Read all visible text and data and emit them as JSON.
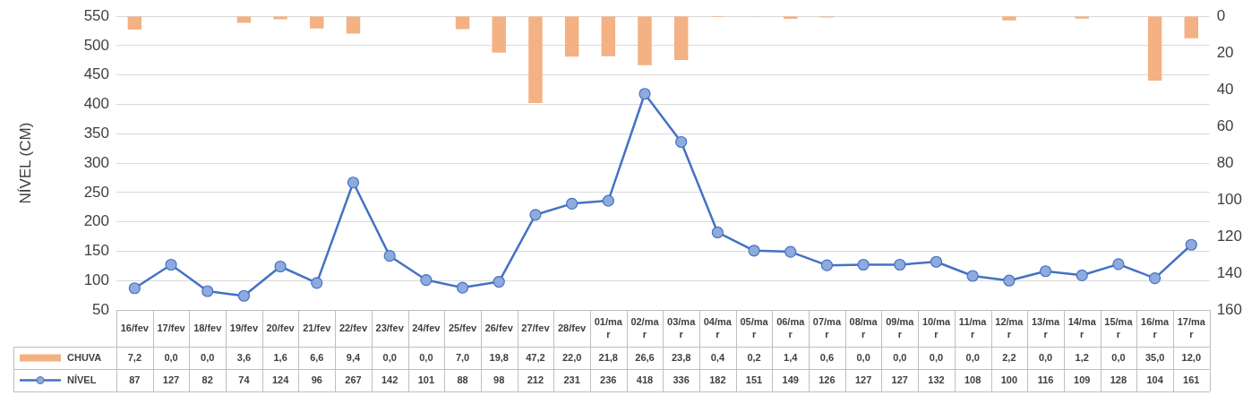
{
  "chart_data": {
    "type": "line",
    "ylabel": "NÍVEL (CM)",
    "categories": [
      "16/fev",
      "17/fev",
      "18/fev",
      "19/fev",
      "20/fev",
      "21/fev",
      "22/fev",
      "23/fev",
      "24/fev",
      "25/fev",
      "26/fev",
      "27/fev",
      "28/fev",
      "01/mar",
      "02/mar",
      "03/mar",
      "04/mar",
      "05/mar",
      "06/mar",
      "07/mar",
      "08/mar",
      "09/mar",
      "10/mar",
      "11/mar",
      "12/mar",
      "13/mar",
      "14/mar",
      "15/mar",
      "16/mar",
      "17/mar"
    ],
    "series": [
      {
        "name": "CHUVA",
        "type": "bar",
        "axis": "y2",
        "color": "#f4b183",
        "values": [
          7.2,
          0.0,
          0.0,
          3.6,
          1.6,
          6.6,
          9.4,
          0.0,
          0.0,
          7.0,
          19.8,
          47.2,
          22.0,
          21.8,
          26.6,
          23.8,
          0.4,
          0.2,
          1.4,
          0.6,
          0.0,
          0.0,
          0.0,
          0.0,
          2.2,
          0.0,
          1.2,
          0.0,
          35.0,
          12.0
        ],
        "value_labels": [
          "7,2",
          "0,0",
          "0,0",
          "3,6",
          "1,6",
          "6,6",
          "9,4",
          "0,0",
          "0,0",
          "7,0",
          "19,8",
          "47,2",
          "22,0",
          "21,8",
          "26,6",
          "23,8",
          "0,4",
          "0,2",
          "1,4",
          "0,6",
          "0,0",
          "0,0",
          "0,0",
          "0,0",
          "2,2",
          "0,0",
          "1,2",
          "0,0",
          "35,0",
          "12,0"
        ]
      },
      {
        "name": "NÍVEL",
        "color": "#4472c4",
        "marker": "circle",
        "values": [
          87,
          127,
          82,
          74,
          124,
          96,
          267,
          142,
          101,
          88,
          98,
          212,
          231,
          236,
          418,
          336,
          182,
          151,
          149,
          126,
          127,
          127,
          132,
          108,
          100,
          116,
          109,
          128,
          104,
          161
        ],
        "value_labels": [
          "87",
          "127",
          "82",
          "74",
          "124",
          "96",
          "267",
          "142",
          "101",
          "88",
          "98",
          "212",
          "231",
          "236",
          "418",
          "336",
          "182",
          "151",
          "149",
          "126",
          "127",
          "127",
          "132",
          "108",
          "100",
          "116",
          "109",
          "128",
          "104",
          "161"
        ]
      }
    ],
    "ylim": [
      50,
      550
    ],
    "yticks": [
      50,
      100,
      150,
      200,
      250,
      300,
      350,
      400,
      450,
      500,
      550
    ],
    "y2lim": [
      160,
      0
    ],
    "y2ticks": [
      0,
      20,
      40,
      60,
      80,
      100,
      120,
      140,
      160
    ],
    "grid": "y",
    "legend": "bottom"
  }
}
